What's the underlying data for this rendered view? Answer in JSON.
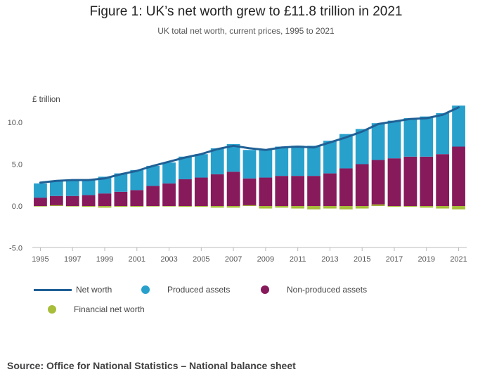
{
  "chart_data": {
    "type": "bar",
    "title": "Figure 1: UK’s net worth grew to £11.8 trillion in 2021",
    "subtitle": "UK total net worth, current prices, 1995 to 2021",
    "ylabel": "£ trillion",
    "ylim": [
      -5,
      12
    ],
    "yticks": [
      10.0,
      5.0,
      0.0,
      -5.0
    ],
    "ytick_labels": [
      "10.0",
      "5.0",
      "0.0",
      "-5.0"
    ],
    "x": [
      1995,
      1996,
      1997,
      1998,
      1999,
      2000,
      2001,
      2002,
      2003,
      2004,
      2005,
      2006,
      2007,
      2008,
      2009,
      2010,
      2011,
      2012,
      2013,
      2014,
      2015,
      2016,
      2017,
      2018,
      2019,
      2020,
      2021
    ],
    "xtick_labels": [
      "1995",
      "1997",
      "1999",
      "2001",
      "2003",
      "2005",
      "2007",
      "2009",
      "2011",
      "2013",
      "2015",
      "2017",
      "2019",
      "2021"
    ],
    "series": [
      {
        "name": "Non-produced assets",
        "kind": "bar",
        "color": "#871a5b",
        "values": [
          1.0,
          1.2,
          1.2,
          1.3,
          1.5,
          1.7,
          1.9,
          2.4,
          2.7,
          3.2,
          3.4,
          3.8,
          4.1,
          3.3,
          3.4,
          3.6,
          3.6,
          3.6,
          3.9,
          4.5,
          5.0,
          5.5,
          5.7,
          5.9,
          5.9,
          6.2,
          7.1
        ]
      },
      {
        "name": "Produced assets",
        "kind": "bar",
        "color": "#27a0cc",
        "values": [
          1.7,
          1.8,
          1.9,
          1.9,
          2.0,
          2.2,
          2.4,
          2.4,
          2.5,
          2.7,
          2.8,
          3.1,
          3.3,
          3.4,
          3.3,
          3.5,
          3.6,
          3.6,
          3.9,
          4.1,
          4.2,
          4.4,
          4.5,
          4.6,
          4.8,
          4.9,
          4.9
        ]
      },
      {
        "name": "Financial net worth",
        "kind": "bar",
        "color": "#a8bd3a",
        "values": [
          0.0,
          0.1,
          0.0,
          -0.1,
          -0.2,
          -0.1,
          -0.1,
          0.0,
          0.0,
          -0.1,
          -0.1,
          -0.2,
          -0.2,
          0.1,
          -0.3,
          -0.2,
          -0.3,
          -0.4,
          -0.3,
          -0.4,
          -0.3,
          0.2,
          -0.1,
          -0.1,
          -0.2,
          -0.3,
          -0.4
        ]
      },
      {
        "name": "Net worth",
        "kind": "line",
        "color": "#206095",
        "values": [
          2.8,
          3.0,
          3.1,
          3.1,
          3.3,
          3.8,
          4.2,
          4.8,
          5.3,
          5.8,
          6.2,
          6.8,
          7.2,
          6.9,
          6.7,
          7.0,
          7.1,
          7.0,
          7.6,
          8.2,
          8.9,
          9.8,
          10.1,
          10.4,
          10.5,
          10.9,
          11.8
        ]
      }
    ],
    "grid": false,
    "legend_position": "bottom"
  },
  "legend": [
    {
      "label": "Net worth",
      "kind": "line",
      "color": "#206095"
    },
    {
      "label": "Produced assets",
      "kind": "dot",
      "color": "#27a0cc"
    },
    {
      "label": "Non-produced assets",
      "kind": "dot",
      "color": "#871a5b"
    },
    {
      "label": "Financial net worth",
      "kind": "dot",
      "color": "#a8bd3a"
    }
  ],
  "source": "Source: Office for National Statistics – National balance sheet"
}
